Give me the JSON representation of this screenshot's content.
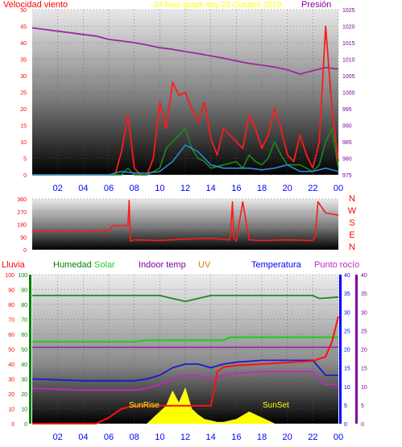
{
  "header": {
    "wind_label": "Velocidad viento",
    "title": "24 hour graph day   22 Octubre 2019",
    "pressure_label": "Presión"
  },
  "row2": {
    "rain": "Lluvia",
    "humidity": "Humedad",
    "solar": "Solar",
    "indoor": "Indoor temp",
    "uv": "UV",
    "temp": "Temperatura",
    "dew": "Punto rocío"
  },
  "annotations": {
    "sunrise": "SunRise",
    "sunset": "SunSet"
  },
  "colors": {
    "wind": "#ff1a1a",
    "gust": "#1a8a1a",
    "wind_avg": "#2a8ad0",
    "pressure": "#9a2aa0",
    "direction": "#ff1a1a",
    "humidity": "#1f8a1f",
    "solar_line": "#22cc22",
    "indoor": "#9a2aa0",
    "uv": "#d08000",
    "temp": "#1a1ad0",
    "dew": "#c028c0",
    "rain": "#ff1010",
    "solar_fill": "#ffff00",
    "axis_red": "#ff0000",
    "axis_blue": "#0000ff",
    "axis_purple": "#8000a0",
    "axis_green": "#008000"
  },
  "chart_data": [
    {
      "type": "line",
      "title": "24 hour graph day   22 Octubre 2019",
      "x_ticks": [
        "02",
        "04",
        "06",
        "08",
        "10",
        "12",
        "14",
        "16",
        "18",
        "20",
        "22",
        "00"
      ],
      "ylabel_left": "Velocidad viento",
      "ylim_left": [
        0,
        50
      ],
      "yticks_left": [
        0,
        5,
        10,
        15,
        20,
        25,
        30,
        35,
        40,
        45,
        50
      ],
      "ylabel_right": "Presión",
      "ylim_right": [
        975,
        1025
      ],
      "yticks_right": [
        975,
        980,
        985,
        990,
        995,
        1000,
        1005,
        1010,
        1015,
        1020,
        1025
      ],
      "series": [
        {
          "name": "Presión",
          "axis": "right",
          "x": [
            0,
            1,
            2,
            3,
            4,
            5,
            6,
            7,
            8,
            9,
            10,
            11,
            12,
            13,
            14,
            15,
            16,
            17,
            18,
            19,
            20,
            21,
            22,
            23,
            24
          ],
          "y": [
            1019.5,
            1019,
            1018.5,
            1018,
            1017.5,
            1017,
            1016,
            1015.5,
            1015,
            1014.3,
            1013.5,
            1013,
            1012.3,
            1011.7,
            1011,
            1010.3,
            1009.5,
            1008.7,
            1008.2,
            1007.6,
            1006.8,
            1005.5,
            1006.5,
            1007.5,
            1007
          ]
        },
        {
          "name": "wind",
          "axis": "left",
          "x": [
            0,
            0.5,
            1,
            1.5,
            2,
            2.5,
            3,
            3.5,
            4,
            4.5,
            5,
            5.5,
            6,
            6.5,
            7,
            7.5,
            8,
            8.5,
            9,
            9.5,
            10,
            10.5,
            11,
            11.5,
            12,
            12.5,
            13,
            13.5,
            14,
            14.5,
            15,
            15.5,
            16,
            16.5,
            17,
            17.5,
            18,
            18.5,
            19,
            19.5,
            20,
            20.5,
            21,
            21.5,
            22,
            22.5,
            23,
            23.5,
            24
          ],
          "y": [
            0,
            0,
            0,
            0,
            0,
            0,
            0,
            0,
            0,
            0,
            0,
            0,
            0,
            0,
            7,
            18,
            2,
            0,
            0,
            5,
            22,
            14,
            28,
            24,
            25,
            20,
            16,
            22,
            11,
            6,
            14,
            12,
            10,
            8,
            18,
            14,
            8,
            12,
            20,
            14,
            6,
            4,
            12,
            6,
            2,
            10,
            45,
            20,
            4
          ]
        },
        {
          "name": "gust",
          "axis": "left",
          "x": [
            0,
            1,
            2,
            3,
            4,
            5,
            6,
            7,
            7.5,
            8,
            9,
            10,
            10.5,
            11,
            11.5,
            12,
            12.5,
            13,
            13.5,
            14,
            15,
            16,
            16.5,
            17,
            17.5,
            18,
            18.5,
            19,
            19.5,
            20,
            21,
            22,
            22.5,
            23,
            23.5,
            24
          ],
          "y": [
            0,
            0,
            0,
            0,
            0,
            0,
            0,
            0,
            2,
            0,
            0,
            2,
            8,
            10,
            12,
            14,
            8,
            5,
            4,
            2,
            3,
            4,
            2,
            6,
            4,
            3,
            5,
            10,
            6,
            3,
            3,
            1,
            3,
            10,
            14,
            2
          ]
        },
        {
          "name": "avg",
          "axis": "left",
          "x": [
            0,
            2,
            4,
            6,
            7,
            8,
            9,
            10,
            11,
            12,
            13,
            14,
            15,
            16,
            17,
            18,
            19,
            20,
            21,
            22,
            23,
            24
          ],
          "y": [
            0,
            0,
            0,
            0,
            1,
            0.5,
            0.5,
            1,
            4,
            9,
            7,
            3,
            2,
            2,
            2,
            1.5,
            2,
            3,
            1,
            1,
            2,
            1
          ]
        }
      ]
    },
    {
      "type": "line",
      "x_ticks": [],
      "ylabel_right_letters": [
        "N",
        "W",
        "S",
        "E",
        "N"
      ],
      "ylim_left": [
        0,
        360
      ],
      "yticks_left": [
        0,
        90,
        180,
        270,
        360
      ],
      "series": [
        {
          "name": "direction",
          "x": [
            0,
            6,
            6.3,
            7.5,
            7.6,
            7.7,
            8,
            10,
            12,
            14,
            15.5,
            15.7,
            15.8,
            16,
            16.5,
            17,
            18,
            20,
            22,
            22.2,
            22.4,
            23,
            24
          ],
          "y": [
            135,
            135,
            170,
            170,
            350,
            60,
            70,
            65,
            75,
            80,
            70,
            340,
            80,
            60,
            340,
            70,
            65,
            70,
            65,
            95,
            340,
            260,
            245
          ]
        }
      ]
    },
    {
      "type": "line",
      "x_ticks": [
        "02",
        "04",
        "06",
        "08",
        "10",
        "12",
        "14",
        "16",
        "18",
        "20",
        "22",
        "00"
      ],
      "ylim_rain": [
        0,
        100
      ],
      "yticks_rain": [
        0,
        10,
        20,
        30,
        40,
        50,
        60,
        70,
        80,
        90,
        100
      ],
      "ylim_humidity": [
        0,
        100
      ],
      "ylim_temp": [
        0,
        40
      ],
      "yticks_temp": [
        0,
        5,
        10,
        15,
        20,
        25,
        30,
        35,
        40
      ],
      "series": [
        {
          "name": "Humedad",
          "axis": "humidity",
          "x": [
            0,
            6,
            9,
            10,
            11,
            12,
            13,
            14,
            16,
            20,
            22,
            22.5,
            24
          ],
          "y": [
            86,
            86,
            86,
            86,
            84,
            82,
            84,
            86,
            86,
            86,
            86,
            84,
            85
          ]
        },
        {
          "name": "Solar",
          "axis": "humidity",
          "x": [
            0,
            8,
            9,
            15,
            15.5,
            22,
            24
          ],
          "y": [
            55,
            55,
            56,
            56,
            58,
            58,
            58
          ]
        },
        {
          "name": "Indoor temp",
          "axis": "temp",
          "x": [
            0,
            24
          ],
          "y": [
            20.5,
            20.5
          ]
        },
        {
          "name": "Temperatura",
          "axis": "temp",
          "x": [
            0,
            4,
            8,
            9,
            10,
            11,
            12,
            13,
            14,
            15,
            16,
            18,
            20,
            22,
            22.5,
            23,
            24
          ],
          "y": [
            12,
            11.5,
            11.5,
            12,
            13,
            15,
            16,
            16,
            15,
            16,
            16.5,
            17,
            17,
            17,
            15,
            13,
            13
          ]
        },
        {
          "name": "Punto rocío",
          "axis": "temp",
          "x": [
            0,
            4,
            8,
            9,
            10,
            11,
            12,
            13,
            14,
            15,
            16,
            18,
            20,
            22,
            22.5,
            23,
            24
          ],
          "y": [
            9.5,
            9,
            9,
            9.5,
            10.5,
            12,
            13,
            13,
            12,
            13,
            13.5,
            14,
            14,
            14,
            12,
            10.5,
            10.5
          ]
        },
        {
          "name": "Lluvia",
          "axis": "rain",
          "x": [
            0,
            5,
            6,
            7,
            8,
            9,
            10,
            12,
            13,
            14,
            14.2,
            14.5,
            15,
            16,
            18,
            20,
            22,
            23,
            23.5,
            24
          ],
          "y": [
            0,
            0,
            4,
            10,
            12,
            12,
            12,
            12,
            12,
            12,
            20,
            35,
            38,
            39,
            40,
            41,
            42,
            45,
            55,
            72
          ]
        },
        {
          "name": "solar_radiation",
          "axis": "rain",
          "x": [
            9,
            9.5,
            10,
            10.5,
            11,
            11.5,
            12,
            12.5,
            13,
            13.5,
            14,
            14.5,
            15,
            16,
            17,
            18,
            18.5,
            19
          ],
          "y": [
            0,
            4,
            8,
            12,
            22,
            14,
            24,
            10,
            6,
            3,
            2,
            1,
            1,
            3,
            8,
            4,
            2,
            0
          ]
        }
      ]
    }
  ]
}
